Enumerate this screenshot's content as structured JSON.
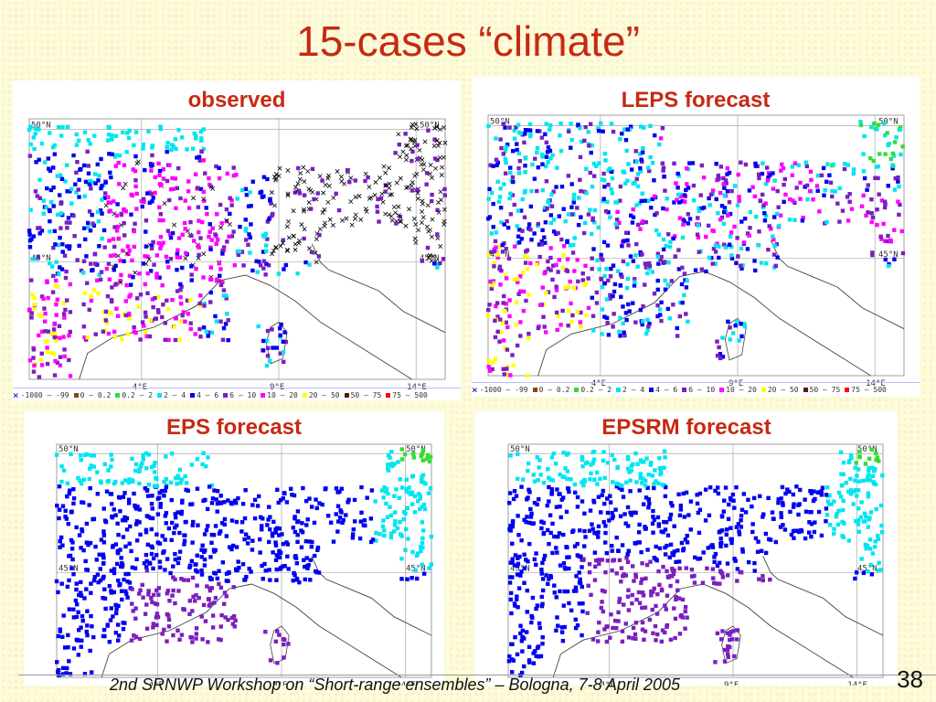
{
  "slide": {
    "title": "15-cases “climate”",
    "footer": "2nd SRNWP Workshop on “Short-range ensembles” – Bologna, 7-8 April 2005",
    "page_number": "38"
  },
  "colors": {
    "title": "#c62a12",
    "cls_0": "#8b4513",
    "cls_0_02": "#33dd33",
    "cls_02_2": "#00e5ee",
    "cls_2_4": "#00e5ee",
    "cls_4_6": "#0000ee",
    "cls_6_10": "#7a1fbf",
    "cls_10_20": "#ff00ff",
    "cls_20_50": "#ffff00",
    "cls_50_75": "#5a1a00",
    "cls_75_500": "#ff0000",
    "no_data": "#000000"
  },
  "map": {
    "lat_labels": [
      "50°N",
      "45°N"
    ],
    "lon_labels": [
      "4°E",
      "9°E",
      "14°E"
    ]
  },
  "legend": {
    "items": [
      {
        "label": "-1000 – -99",
        "color": "#000000",
        "marker": "x"
      },
      {
        "label": "0 – 0.2",
        "color": "#8b4513"
      },
      {
        "label": "0.2 – 2",
        "color": "#33dd33"
      },
      {
        "label": "2 – 4",
        "color": "#00e5ee"
      },
      {
        "label": "4 – 6",
        "color": "#0000ee"
      },
      {
        "label": "6 – 10",
        "color": "#7a1fbf"
      },
      {
        "label": "10 – 20",
        "color": "#ff00ff"
      },
      {
        "label": "20 – 50",
        "color": "#ffff00"
      },
      {
        "label": "50 – 75",
        "color": "#5a1a00"
      },
      {
        "label": "75 – 500",
        "color": "#ff0000"
      }
    ]
  },
  "panels": [
    {
      "id": "observed",
      "title": "observed"
    },
    {
      "id": "leps",
      "title": "LEPS forecast"
    },
    {
      "id": "eps",
      "title": "EPS forecast"
    },
    {
      "id": "epsrm",
      "title": "EPSRM forecast"
    }
  ]
}
